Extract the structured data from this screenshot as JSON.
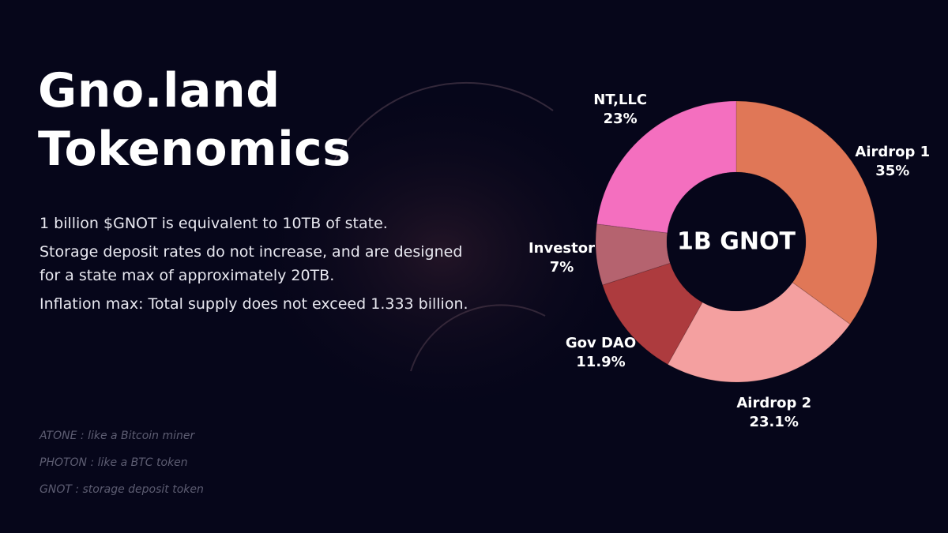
{
  "title_lines": [
    "Gno.land",
    "Tokenomics"
  ],
  "paragraphs": [
    "1 billion $GNOT is equivalent to 10TB of state.",
    "Storage deposit rates do not increase, and are designed for a state max of approximately 20TB.",
    "Inflation max: Total supply does not exceed 1.333 billion."
  ],
  "notes": [
    "ATONE : like a Bitcoin miner",
    "PHOTON : like a BTC token",
    "GNOT : storage deposit token"
  ],
  "chart_data": {
    "type": "pie",
    "variant": "donut",
    "center_label": "1B GNOT",
    "start": "top",
    "direction": "clockwise",
    "slices": [
      {
        "name": "Airdrop 1",
        "value": 35,
        "label": "35%",
        "color": "#e07757"
      },
      {
        "name": "Airdrop 2",
        "value": 23.1,
        "label": "23.1%",
        "color": "#f4a0a0"
      },
      {
        "name": "Gov DAO",
        "value": 11.9,
        "label": "11.9%",
        "color": "#ad3b3e"
      },
      {
        "name": "Investor",
        "value": 7,
        "label": "7%",
        "color": "#b5636f"
      },
      {
        "name": "NT,LLC",
        "value": 23,
        "label": "23%",
        "color": "#f46fbf"
      }
    ]
  },
  "colors": {
    "background": "#06061a",
    "donut_hole": "#06061a",
    "note_text": "#5d5d72"
  }
}
